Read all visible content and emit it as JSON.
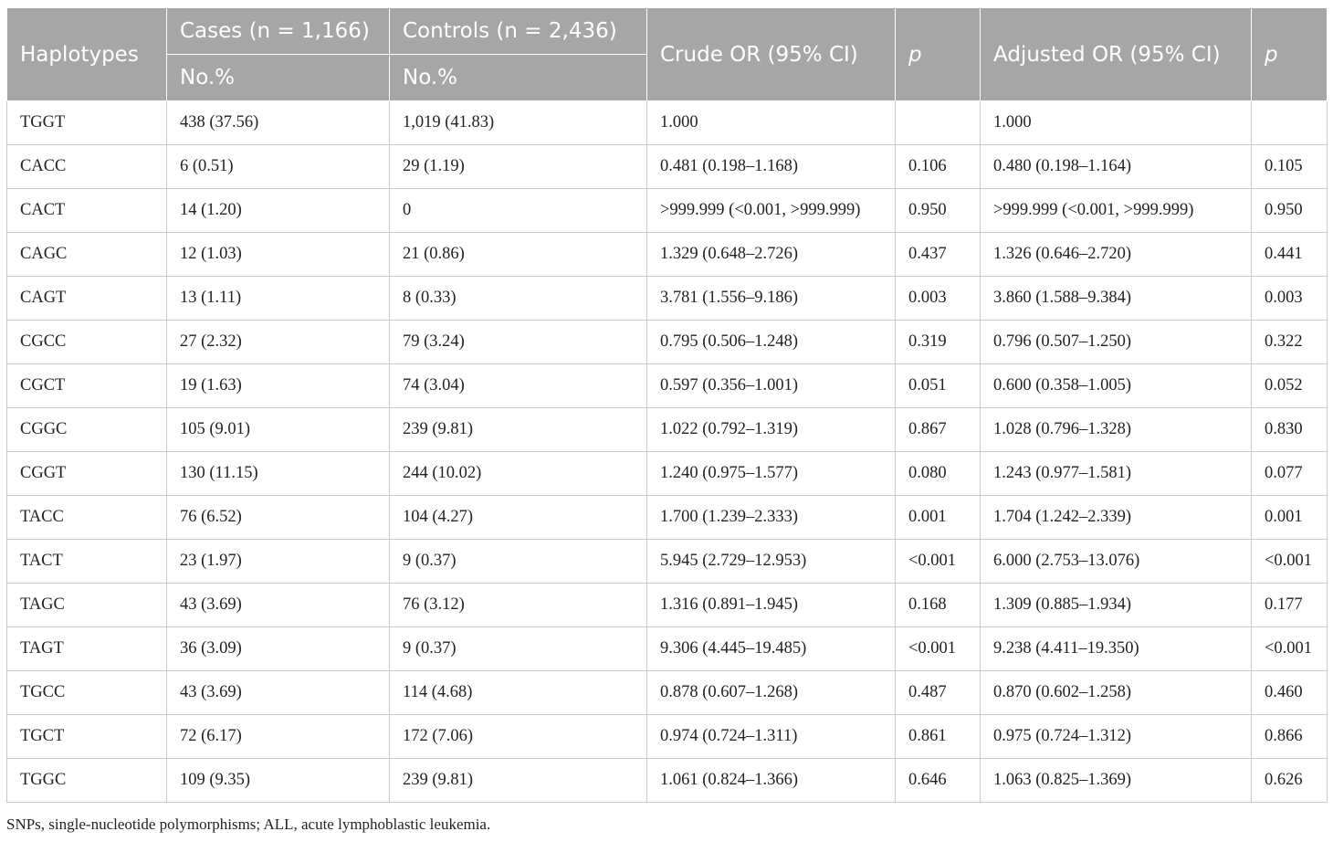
{
  "table": {
    "headers": {
      "haplotypes": "Haplotypes",
      "cases": "Cases (n = 1,166)",
      "controls": "Controls (n = 2,436)",
      "cases_sub": "No.%",
      "controls_sub": "No.%",
      "crude_or": "Crude OR (95% CI)",
      "p1": "p",
      "adjusted_or": "Adjusted OR (95% CI)",
      "p2": "p"
    },
    "rows": [
      [
        "TGGT",
        "438 (37.56)",
        "1,019 (41.83)",
        "1.000",
        "",
        "1.000",
        ""
      ],
      [
        "CACC",
        "6 (0.51)",
        "29 (1.19)",
        "0.481 (0.198–1.168)",
        "0.106",
        "0.480 (0.198–1.164)",
        "0.105"
      ],
      [
        "CACT",
        "14 (1.20)",
        "0",
        ">999.999 (<0.001, >999.999)",
        "0.950",
        ">999.999 (<0.001, >999.999)",
        "0.950"
      ],
      [
        "CAGC",
        "12 (1.03)",
        "21 (0.86)",
        "1.329 (0.648–2.726)",
        "0.437",
        "1.326 (0.646–2.720)",
        "0.441"
      ],
      [
        "CAGT",
        "13 (1.11)",
        "8 (0.33)",
        "3.781 (1.556–9.186)",
        "0.003",
        "3.860 (1.588–9.384)",
        "0.003"
      ],
      [
        "CGCC",
        "27 (2.32)",
        "79 (3.24)",
        "0.795 (0.506–1.248)",
        "0.319",
        "0.796 (0.507–1.250)",
        "0.322"
      ],
      [
        "CGCT",
        "19 (1.63)",
        "74 (3.04)",
        "0.597 (0.356–1.001)",
        "0.051",
        "0.600 (0.358–1.005)",
        "0.052"
      ],
      [
        "CGGC",
        "105 (9.01)",
        "239 (9.81)",
        "1.022 (0.792–1.319)",
        "0.867",
        "1.028 (0.796–1.328)",
        "0.830"
      ],
      [
        "CGGT",
        "130 (11.15)",
        "244 (10.02)",
        "1.240 (0.975–1.577)",
        "0.080",
        "1.243 (0.977–1.581)",
        "0.077"
      ],
      [
        "TACC",
        "76 (6.52)",
        "104 (4.27)",
        "1.700 (1.239–2.333)",
        "0.001",
        "1.704 (1.242–2.339)",
        "0.001"
      ],
      [
        "TACT",
        "23 (1.97)",
        "9 (0.37)",
        "5.945 (2.729–12.953)",
        "<0.001",
        "6.000 (2.753–13.076)",
        "<0.001"
      ],
      [
        "TAGC",
        "43 (3.69)",
        "76 (3.12)",
        "1.316 (0.891–1.945)",
        "0.168",
        "1.309 (0.885–1.934)",
        "0.177"
      ],
      [
        "TAGT",
        "36 (3.09)",
        "9 (0.37)",
        "9.306 (4.445–19.485)",
        "<0.001",
        "9.238 (4.411–19.350)",
        "<0.001"
      ],
      [
        "TGCC",
        "43 (3.69)",
        "114 (4.68)",
        "0.878 (0.607–1.268)",
        "0.487",
        "0.870 (0.602–1.258)",
        "0.460"
      ],
      [
        "TGCT",
        "72 (6.17)",
        "172 (7.06)",
        "0.974 (0.724–1.311)",
        "0.861",
        "0.975 (0.724–1.312)",
        "0.866"
      ],
      [
        "TGGC",
        "109 (9.35)",
        "239 (9.81)",
        "1.061 (0.824–1.366)",
        "0.646",
        "1.063 (0.825–1.369)",
        "0.626"
      ]
    ]
  },
  "footnote": "SNPs, single-nucleotide polymorphisms; ALL, acute lymphoblastic leukemia."
}
